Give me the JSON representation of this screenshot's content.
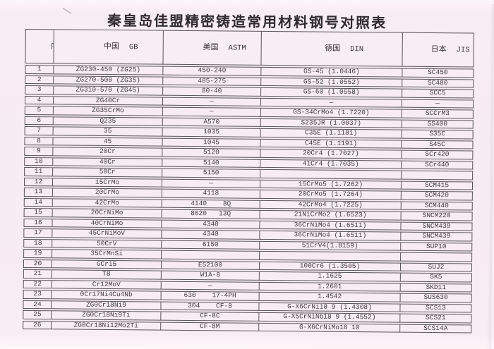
{
  "title": "秦皇岛佳盟精密铸造常用材料钢号对照表",
  "table": {
    "headers": [
      {
        "cn": "序号",
        "en": ""
      },
      {
        "cn": "中国",
        "en": "GB"
      },
      {
        "cn": "美国",
        "en": "ASTM"
      },
      {
        "cn": "德国",
        "en": "DIN"
      },
      {
        "cn": "日本",
        "en": "JIS"
      }
    ],
    "column_keys": [
      "seq",
      "china-gb",
      "usa-astm",
      "germany-din",
      "japan-jis"
    ],
    "rows": [
      [
        "1",
        "ZG230-450 (ZG25)",
        "450-240",
        "GS-45 (1.0446)",
        "SC450"
      ],
      [
        "2",
        "ZG270-500 (ZG35)",
        "485-275",
        "GS-52 (1.0552)",
        "SC480"
      ],
      [
        "3",
        "ZG310-570 (ZG45)",
        "80-40",
        "GS-60 (1.0558)",
        "SCC5"
      ],
      [
        "4",
        "ZG40Cr",
        "—",
        "—",
        "—"
      ],
      [
        "5",
        "ZG35CrMo",
        "—",
        "GS-34CrMo4 (1.7220)",
        "SCCrM3"
      ],
      [
        "6",
        "Q235",
        "A570",
        "S235JR (1.0037)",
        "SS400"
      ],
      [
        "7",
        "35",
        "1035",
        "C35E (1.1181)",
        "S35C"
      ],
      [
        "8",
        "45",
        "1045",
        "C45E (1.1191)",
        "S45C"
      ],
      [
        "9",
        "20Cr",
        "5120",
        "20Cr4 (1.7027)",
        "SCr420"
      ],
      [
        "10",
        "40Cr",
        "5140",
        "41Cr4 (1.7035)",
        "SCr440"
      ],
      [
        "11",
        "50Cr",
        "5150",
        "",
        ""
      ],
      [
        "12",
        "15CrMo",
        "—",
        "15CrMo5 (1.7262)",
        "SCM415"
      ],
      [
        "13",
        "20CrMo",
        "4118",
        "20CrMo5 (1.7264)",
        "SCM420"
      ],
      [
        "14",
        "42CrMo",
        "4140    8Q",
        "42CrMo4 (1.7225)",
        "SCM440"
      ],
      [
        "15",
        "20CrNiMo",
        "8620   13Q",
        "21NiCrMo2 (1.6523)",
        "SNCM220"
      ],
      [
        "16",
        "40CrNiMo",
        "4340",
        "36CrNiMo4 (1.6511)",
        "SNCM439"
      ],
      [
        "17",
        "45CrNiMoV",
        "4340",
        "36CrNiMo4 (1.6511)",
        "SNCM439"
      ],
      [
        "18",
        "50CrV",
        "6150",
        "51CrV4(1.8159)",
        "SUP10"
      ],
      [
        "19",
        "35CrMnSi",
        "",
        "",
        ""
      ],
      [
        "20",
        "GCr15",
        "E52100",
        "100Cr6 (1.3505)",
        "SUJ2"
      ],
      [
        "21",
        "T8",
        "W1A-8",
        "1.1625",
        "SK5"
      ],
      [
        "22",
        "Cr12MoV",
        "—",
        "1.2601",
        "SKD11"
      ],
      [
        "23",
        "0Cr17Ni4Cu4Nb",
        "630    17-4PH",
        "1.4542",
        "SUS630"
      ],
      [
        "24",
        "ZG0Cr18Ni9",
        "304    CF-8",
        "G-X6CrNi18 9 (1.4308)",
        "SCS13"
      ],
      [
        "25",
        "ZG0Cr18Ni9Ti",
        "CF-8C",
        "G-X5CrNiNb18 9 (1.4552)",
        "SCS21"
      ],
      [
        "26",
        "ZG0Cr18Ni12Mo2Ti",
        "CF-8M",
        "G-X6CrNiMo18 10",
        "SCS14A"
      ]
    ]
  }
}
